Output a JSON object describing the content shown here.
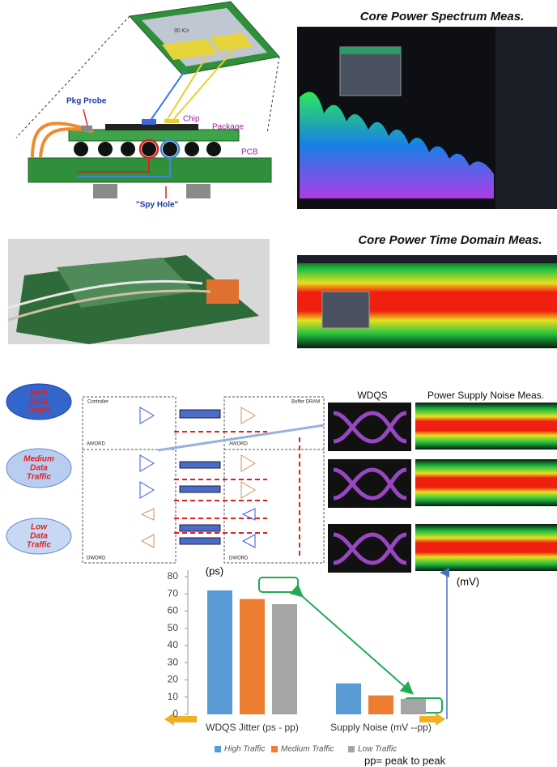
{
  "panels": {
    "spectrum_title": "Core Power Spectrum Meas.",
    "time_title": "Core Power Time Domain Meas.",
    "wdqs_title": "WDQS",
    "noise_title": "Power Supply Noise Meas."
  },
  "package_labels": {
    "stack": "3D ICs",
    "pkg_probe": "Pkg Probe",
    "chip": "Chip",
    "package": "Package",
    "pcb": "PCB",
    "spy_hole": "\"Spy Hole\""
  },
  "traffic": [
    [
      "High",
      "Data",
      "Traffic"
    ],
    [
      "Medium",
      "Data",
      "Traffic"
    ],
    [
      "Low",
      "Data",
      "Traffic"
    ]
  ],
  "circuit": {
    "controller": "Controller",
    "buffer": "Buffer DRAM",
    "aword_left": "AWORD",
    "aword_right": "AWORD",
    "dword_left": "DWORD",
    "dword_right": "DWORD"
  },
  "chart_data": {
    "type": "bar",
    "y_unit": "(ps)",
    "y2_unit": "(mV)",
    "note": "pp= peak to peak",
    "categories": [
      "WDQS Jitter (ps - pp)",
      "Supply Noise (mV --pp)"
    ],
    "series": [
      {
        "name": "High Traffic",
        "color": "#5b9bd5",
        "values": [
          72,
          18
        ]
      },
      {
        "name": "Medium Traffic",
        "color": "#ed7d31",
        "values": [
          67,
          11
        ]
      },
      {
        "name": "Low Traffic",
        "color": "#a5a5a5",
        "values": [
          64,
          9
        ]
      }
    ],
    "ylim": [
      0,
      80
    ],
    "yticks": [
      0,
      10,
      20,
      30,
      40,
      50,
      60,
      70,
      80
    ]
  }
}
